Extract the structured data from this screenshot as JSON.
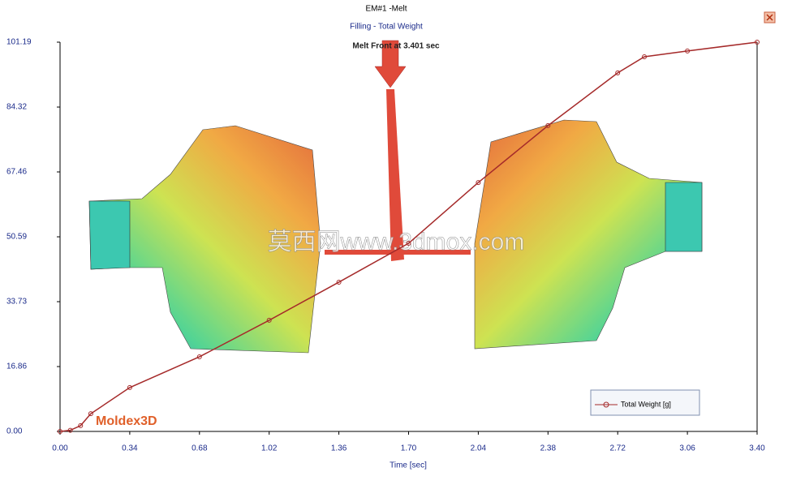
{
  "chart_data": {
    "type": "line",
    "title": "EM#1 -Melt",
    "subtitle": "Filling - Total Weight",
    "annotation": "Melt Front at 3.401 sec",
    "x_label": "Time [sec]",
    "watermark": "莫西网www.3dmox.com",
    "logo_text": "Moldex3D",
    "x": [
      0,
      0.05,
      0.1,
      0.15,
      0.34,
      0.68,
      1.02,
      1.36,
      1.7,
      2.04,
      2.38,
      2.72,
      2.85,
      3.06,
      3.4
    ],
    "series": [
      {
        "name": "Total Weight [g]",
        "color": "#a52a2a",
        "values": [
          0,
          0.3,
          1.5,
          4.6,
          11.4,
          19.4,
          28.9,
          38.8,
          48.9,
          64.7,
          79.5,
          93.2,
          97.4,
          98.9,
          101.19
        ]
      }
    ],
    "xlim": [
      0,
      3.4
    ],
    "ylim": [
      0,
      101.19
    ],
    "xticks": [
      {
        "value": 0,
        "label": "0.00"
      },
      0.34,
      0.68,
      1.02,
      1.36,
      {
        "value": 1.7,
        "label": "1.70"
      },
      2.04,
      2.38,
      2.72,
      3.06,
      {
        "value": 3.4,
        "label": "3.40"
      }
    ],
    "yticks": [
      {
        "value": 0,
        "label": "0.00"
      },
      16.86,
      33.73,
      50.59,
      67.46,
      84.32,
      101.19
    ],
    "legend": "bottom-right"
  }
}
